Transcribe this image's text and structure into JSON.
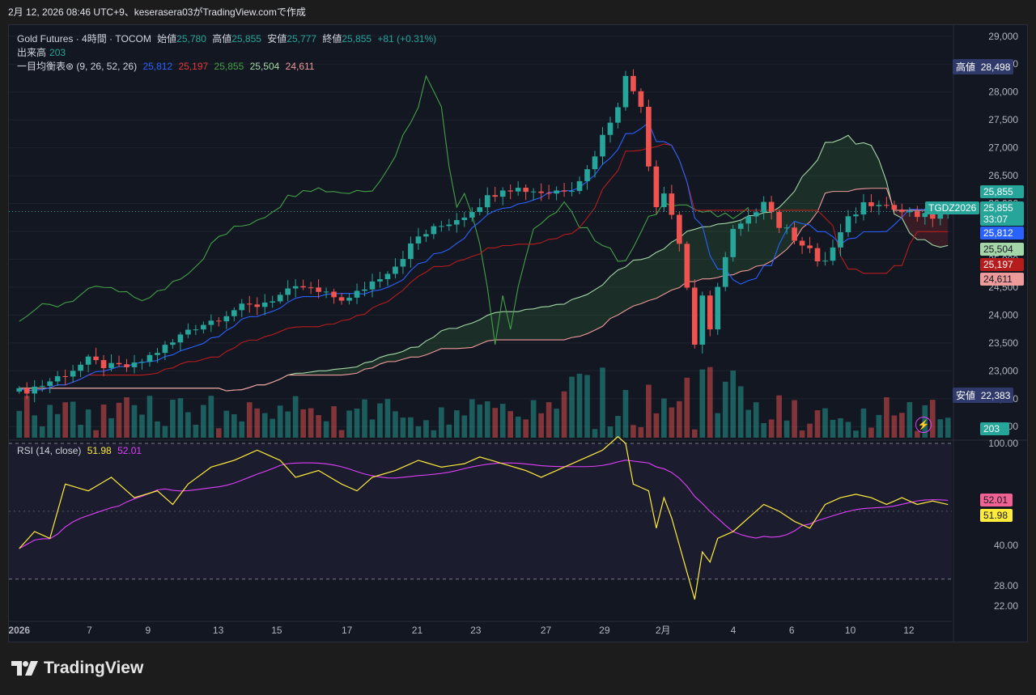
{
  "header": {
    "caption": "2月 12, 2026 08:46 UTC+9、keserasera03がTradingView.comで作成"
  },
  "legend": {
    "symbol": "Gold Futures · 4時間 · TOCOM",
    "open_label": "始値",
    "open": "25,780",
    "high_label": "高値",
    "high": "25,855",
    "low_label": "安値",
    "low": "25,777",
    "close_label": "終値",
    "close": "25,855",
    "change": "+81 (+0.31%)",
    "volume_label": "出来高",
    "volume": "203",
    "ichimoku_label": "一目均衡表⊛ (9, 26, 52, 26)",
    "ichimoku_values": [
      "25,812",
      "25,197",
      "25,855",
      "25,504",
      "24,611"
    ],
    "rsi_label": "RSI (14, close)",
    "rsi_value": "51.98",
    "rsi_ma": "52.01"
  },
  "price_axis": {
    "ticks": [
      "29,000",
      "28,500",
      "28,000",
      "27,500",
      "27,000",
      "26,500",
      "26,000",
      "25,500",
      "25,000",
      "24,500",
      "24,000",
      "23,500",
      "23,000",
      "22,500",
      "22,000"
    ],
    "high_label": "高値",
    "high_value": "28,498",
    "low_label": "安値",
    "low_value": "22,383",
    "symbol_tag": "TGDZ2026",
    "last_price": "25,855",
    "countdown": "33:07",
    "tags": [
      {
        "value": "25,855",
        "color": "#26a69a"
      },
      {
        "value": "25,812",
        "color": "#2962ff"
      },
      {
        "value": "25,504",
        "color": "#a5d6a7"
      },
      {
        "value": "25,197",
        "color": "#b71c1c"
      },
      {
        "value": "24,611",
        "color": "#ef9a9a"
      }
    ],
    "volume_tag": "203"
  },
  "rsi_axis": {
    "ticks": [
      "100.00",
      "40.00",
      "28.00",
      "22.00"
    ],
    "value_tag": "51.98",
    "ma_tag": "52.01"
  },
  "time_axis": {
    "labels": [
      "2026",
      "7",
      "9",
      "13",
      "15",
      "17",
      "21",
      "23",
      "27",
      "29",
      "2月",
      "4",
      "6",
      "10",
      "12"
    ]
  },
  "brand": {
    "name": "TradingView"
  },
  "colors": {
    "up": "#26a69a",
    "down": "#ef5350",
    "tenkan": "#2962ff",
    "kijun": "#b71c1c",
    "senkou_a": "#a5d6a7",
    "senkou_b": "#ef9a9a",
    "chikou": "#43a047",
    "rsi": "#ffeb3b",
    "rsi_ma": "#e040fb"
  },
  "chart_data": {
    "type": "candlestick",
    "title": "Gold Futures · 4時間 · TOCOM",
    "ylim": [
      21800,
      29200
    ],
    "x_labels": [
      "2026",
      "7",
      "9",
      "13",
      "15",
      "17",
      "21",
      "23",
      "27",
      "29",
      "2月",
      "4",
      "6",
      "10",
      "12"
    ],
    "price_path": [
      [
        0,
        22620
      ],
      [
        3,
        22750
      ],
      [
        6,
        22950
      ],
      [
        9,
        23180
      ],
      [
        12,
        23060
      ],
      [
        15,
        23080
      ],
      [
        18,
        23350
      ],
      [
        20,
        23500
      ],
      [
        22,
        23750
      ],
      [
        25,
        23900
      ],
      [
        28,
        24100
      ],
      [
        31,
        24180
      ],
      [
        34,
        24350
      ],
      [
        37,
        24500
      ],
      [
        40,
        24350
      ],
      [
        43,
        24280
      ],
      [
        46,
        24600
      ],
      [
        49,
        24900
      ],
      [
        52,
        25400
      ],
      [
        55,
        25600
      ],
      [
        58,
        25800
      ],
      [
        60,
        26000
      ],
      [
        63,
        26300
      ],
      [
        66,
        26250
      ],
      [
        69,
        26200
      ],
      [
        72,
        26300
      ],
      [
        74,
        26600
      ],
      [
        76,
        27200
      ],
      [
        78,
        27800
      ],
      [
        79,
        28250
      ],
      [
        81,
        27800
      ],
      [
        82,
        26700
      ],
      [
        83,
        26000
      ],
      [
        84,
        26200
      ],
      [
        85,
        25800
      ],
      [
        86,
        25300
      ],
      [
        87,
        24500
      ],
      [
        88,
        23400
      ],
      [
        89,
        24300
      ],
      [
        90,
        23800
      ],
      [
        91,
        24500
      ],
      [
        92,
        25000
      ],
      [
        93,
        25500
      ],
      [
        95,
        25700
      ],
      [
        97,
        26100
      ],
      [
        99,
        25600
      ],
      [
        101,
        25400
      ],
      [
        103,
        25200
      ],
      [
        104,
        24900
      ],
      [
        105,
        25000
      ],
      [
        106,
        25200
      ],
      [
        108,
        25700
      ],
      [
        110,
        26000
      ],
      [
        112,
        26050
      ],
      [
        114,
        25900
      ],
      [
        116,
        25800
      ],
      [
        118,
        25750
      ],
      [
        120,
        25780
      ],
      [
        121,
        25855
      ]
    ],
    "rsi_path": [
      [
        0,
        39
      ],
      [
        2,
        44
      ],
      [
        4,
        42
      ],
      [
        6,
        58
      ],
      [
        9,
        56
      ],
      [
        12,
        60
      ],
      [
        15,
        54
      ],
      [
        18,
        56
      ],
      [
        20,
        52
      ],
      [
        22,
        58
      ],
      [
        25,
        63
      ],
      [
        28,
        65
      ],
      [
        31,
        68
      ],
      [
        34,
        65
      ],
      [
        36,
        60
      ],
      [
        39,
        62
      ],
      [
        42,
        58
      ],
      [
        44,
        56
      ],
      [
        46,
        60
      ],
      [
        49,
        62
      ],
      [
        52,
        65
      ],
      [
        55,
        63
      ],
      [
        58,
        64
      ],
      [
        60,
        66
      ],
      [
        63,
        64
      ],
      [
        66,
        62
      ],
      [
        68,
        60
      ],
      [
        70,
        62
      ],
      [
        72,
        64
      ],
      [
        74,
        66
      ],
      [
        76,
        68
      ],
      [
        78,
        72
      ],
      [
        79,
        70
      ],
      [
        80,
        58
      ],
      [
        82,
        56
      ],
      [
        83,
        45
      ],
      [
        84,
        54
      ],
      [
        85,
        48
      ],
      [
        86,
        40
      ],
      [
        87,
        32
      ],
      [
        88,
        24
      ],
      [
        89,
        38
      ],
      [
        90,
        35
      ],
      [
        91,
        42
      ],
      [
        93,
        44
      ],
      [
        95,
        48
      ],
      [
        97,
        52
      ],
      [
        99,
        50
      ],
      [
        101,
        47
      ],
      [
        103,
        45
      ],
      [
        105,
        52
      ],
      [
        107,
        54
      ],
      [
        109,
        55
      ],
      [
        111,
        54
      ],
      [
        113,
        52
      ],
      [
        115,
        54
      ],
      [
        117,
        52
      ],
      [
        119,
        53
      ],
      [
        121,
        51.98
      ]
    ],
    "rsi_ylim": [
      18,
      70
    ],
    "last_close": 25855,
    "high": 28498,
    "low": 22383,
    "volume_last": 203,
    "rsi_last": 51.98,
    "rsi_ma_last": 52.01
  }
}
